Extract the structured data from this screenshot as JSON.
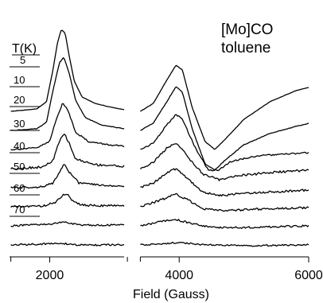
{
  "chart_data": {
    "type": "line",
    "annotation": [
      "[Mo]CO",
      "toluene"
    ],
    "legend_title": "T(K)",
    "xlabel": "Field (Gauss)",
    "ylabel": "",
    "xlim": [
      1380,
      6000
    ],
    "x_ticks": [
      {
        "value": 2000,
        "label": "2000"
      },
      {
        "value": 4000,
        "label": "4000"
      },
      {
        "value": 6000,
        "label": "6000"
      }
    ],
    "x_minor_ticks": [
      1400,
      3200,
      3400
    ],
    "x_break": [
      3150,
      3400
    ],
    "series": [
      {
        "name": "5",
        "noise": 0.15,
        "points_left": [
          [
            1400,
            0
          ],
          [
            1800,
            3
          ],
          [
            1950,
            12
          ],
          [
            2050,
            52
          ],
          [
            2120,
            86
          ],
          [
            2180,
            103
          ],
          [
            2240,
            98
          ],
          [
            2300,
            70
          ],
          [
            2380,
            38
          ],
          [
            2500,
            18
          ],
          [
            2700,
            10
          ],
          [
            2900,
            6
          ],
          [
            3150,
            2
          ]
        ],
        "points_right": [
          [
            3400,
            0
          ],
          [
            3600,
            10
          ],
          [
            3800,
            38
          ],
          [
            3950,
            58
          ],
          [
            4050,
            52
          ],
          [
            4200,
            5
          ],
          [
            4400,
            -38
          ],
          [
            4550,
            -48
          ],
          [
            4700,
            -36
          ],
          [
            5000,
            -10
          ],
          [
            5400,
            12
          ],
          [
            5800,
            26
          ],
          [
            6000,
            30
          ]
        ]
      },
      {
        "name": "10",
        "noise": 0.3,
        "points_left": [
          [
            1400,
            0
          ],
          [
            1800,
            2
          ],
          [
            1950,
            10
          ],
          [
            2050,
            50
          ],
          [
            2150,
            85
          ],
          [
            2220,
            92
          ],
          [
            2300,
            72
          ],
          [
            2400,
            38
          ],
          [
            2550,
            16
          ],
          [
            2800,
            7
          ],
          [
            3150,
            2
          ]
        ],
        "points_right": [
          [
            3400,
            0
          ],
          [
            3600,
            9
          ],
          [
            3800,
            35
          ],
          [
            3950,
            55
          ],
          [
            4050,
            48
          ],
          [
            4200,
            2
          ],
          [
            4400,
            -42
          ],
          [
            4550,
            -50
          ],
          [
            4700,
            -38
          ],
          [
            5000,
            -18
          ],
          [
            5400,
            -4
          ],
          [
            5800,
            5
          ],
          [
            6000,
            9
          ]
        ]
      },
      {
        "name": "20",
        "noise": 0.8,
        "points_left": [
          [
            1400,
            0
          ],
          [
            1800,
            2
          ],
          [
            2000,
            10
          ],
          [
            2100,
            38
          ],
          [
            2200,
            58
          ],
          [
            2280,
            50
          ],
          [
            2400,
            22
          ],
          [
            2600,
            10
          ],
          [
            2900,
            6
          ],
          [
            3150,
            4
          ]
        ],
        "points_right": [
          [
            3400,
            0
          ],
          [
            3600,
            8
          ],
          [
            3800,
            30
          ],
          [
            3950,
            44
          ],
          [
            4050,
            38
          ],
          [
            4250,
            2
          ],
          [
            4450,
            -26
          ],
          [
            4600,
            -26
          ],
          [
            4800,
            -15
          ],
          [
            5200,
            -8
          ],
          [
            6000,
            -4
          ]
        ]
      },
      {
        "name": "30",
        "noise": 1.2,
        "points_left": [
          [
            1400,
            0
          ],
          [
            1900,
            2
          ],
          [
            2050,
            10
          ],
          [
            2150,
            34
          ],
          [
            2220,
            44
          ],
          [
            2280,
            36
          ],
          [
            2400,
            12
          ],
          [
            2700,
            5
          ],
          [
            3150,
            3
          ]
        ],
        "points_right": [
          [
            3400,
            0
          ],
          [
            3600,
            8
          ],
          [
            3800,
            25
          ],
          [
            3950,
            33
          ],
          [
            4100,
            18
          ],
          [
            4350,
            -6
          ],
          [
            4600,
            -14
          ],
          [
            4900,
            -9
          ],
          [
            5400,
            -5
          ],
          [
            6000,
            -2
          ]
        ]
      },
      {
        "name": "40",
        "noise": 1.1,
        "points_left": [
          [
            1400,
            0
          ],
          [
            1900,
            1
          ],
          [
            2050,
            6
          ],
          [
            2150,
            20
          ],
          [
            2230,
            30
          ],
          [
            2300,
            20
          ],
          [
            2450,
            6
          ],
          [
            2800,
            3
          ],
          [
            3150,
            2
          ]
        ],
        "points_right": [
          [
            3400,
            0
          ],
          [
            3600,
            6
          ],
          [
            3800,
            18
          ],
          [
            3950,
            24
          ],
          [
            4100,
            14
          ],
          [
            4350,
            -5
          ],
          [
            4600,
            -10
          ],
          [
            5000,
            -7
          ],
          [
            6000,
            -3
          ]
        ]
      },
      {
        "name": "50",
        "noise": 1.1,
        "points_left": [
          [
            1400,
            0
          ],
          [
            1900,
            1
          ],
          [
            2100,
            6
          ],
          [
            2200,
            14
          ],
          [
            2260,
            17
          ],
          [
            2350,
            8
          ],
          [
            2500,
            2
          ],
          [
            3150,
            1
          ]
        ],
        "points_right": [
          [
            3400,
            0
          ],
          [
            3700,
            8
          ],
          [
            3950,
            16
          ],
          [
            4100,
            10
          ],
          [
            4400,
            -3
          ],
          [
            4700,
            -5
          ],
          [
            5200,
            -3
          ],
          [
            6000,
            -1
          ]
        ]
      },
      {
        "name": "60",
        "noise": 1.0,
        "points_left": [
          [
            1400,
            0
          ],
          [
            2000,
            2
          ],
          [
            2200,
            5
          ],
          [
            2300,
            3
          ],
          [
            2500,
            1
          ],
          [
            3150,
            1
          ]
        ],
        "points_right": [
          [
            3400,
            0
          ],
          [
            3700,
            5
          ],
          [
            3950,
            8
          ],
          [
            4200,
            3
          ],
          [
            4500,
            -2
          ],
          [
            5000,
            -2
          ],
          [
            6000,
            0
          ]
        ]
      },
      {
        "name": "70",
        "noise": 0.9,
        "points_left": [
          [
            1400,
            0
          ],
          [
            2200,
            2
          ],
          [
            2400,
            0
          ],
          [
            3150,
            0
          ]
        ],
        "points_right": [
          [
            3400,
            0
          ],
          [
            3800,
            2
          ],
          [
            4000,
            3
          ],
          [
            4400,
            0
          ],
          [
            5000,
            -1
          ],
          [
            6000,
            0
          ]
        ]
      }
    ]
  }
}
